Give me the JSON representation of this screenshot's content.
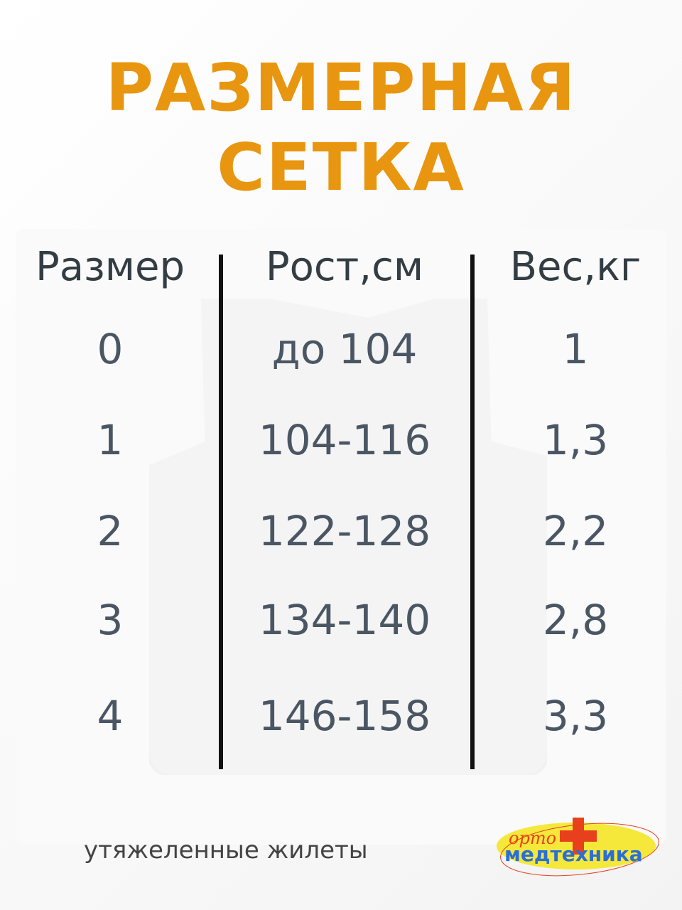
{
  "title": {
    "line1": "РАЗМЕРНАЯ",
    "line2": "СЕТКА"
  },
  "table": {
    "headers": [
      "Размер",
      "Рост,см",
      "Вес,кг"
    ],
    "rows": [
      [
        "0",
        "до 104",
        "1"
      ],
      [
        "1",
        "104-116",
        "1,3"
      ],
      [
        "2",
        "122-128",
        "2,2"
      ],
      [
        "3",
        "134-140",
        "2,8"
      ],
      [
        "4",
        "146-158",
        "3,3"
      ]
    ]
  },
  "footer": "утяжеленные жилеты",
  "logo": {
    "top": "орто",
    "bottom": "медтехника"
  },
  "colors": {
    "title": "#e8960f",
    "text": "#4a5663",
    "logo_blue": "#2a6fd6",
    "logo_red": "#e8401c",
    "logo_yellow": "#f5e83a"
  }
}
